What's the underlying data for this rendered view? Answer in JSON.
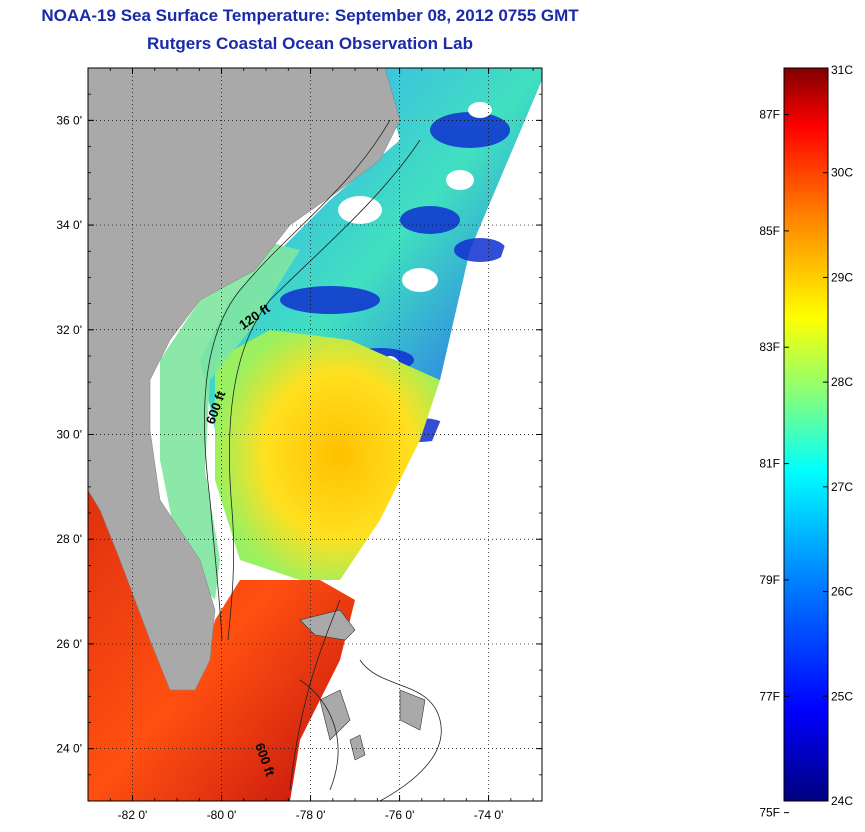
{
  "title": {
    "line1": "NOAA-19 Sea Surface Temperature:  September 08, 2012 0755 GMT",
    "line2": "Rutgers Coastal Ocean Observation Lab"
  },
  "map": {
    "lon_range": [
      -83.0,
      -72.8
    ],
    "lat_range": [
      23.0,
      37.0
    ],
    "lon_ticks": [
      {
        "value": -82,
        "label": "-82 0'"
      },
      {
        "value": -80,
        "label": "-80 0'"
      },
      {
        "value": -78,
        "label": "-78 0'"
      },
      {
        "value": -76,
        "label": "-76 0'"
      },
      {
        "value": -74,
        "label": "-74 0'"
      }
    ],
    "lat_ticks": [
      {
        "value": 24,
        "label": "24 0'"
      },
      {
        "value": 26,
        "label": "26 0'"
      },
      {
        "value": 28,
        "label": "28 0'"
      },
      {
        "value": 30,
        "label": "30 0'"
      },
      {
        "value": 32,
        "label": "32 0'"
      },
      {
        "value": 34,
        "label": "34 0'"
      },
      {
        "value": 36,
        "label": "36 0'"
      }
    ],
    "contour_labels": [
      "120 ft",
      "600 ft",
      "600 ft"
    ],
    "colors": {
      "land": "#a9a9a9",
      "ocean_gap": "#ffffff",
      "grid": "#000000"
    }
  },
  "colorbar": {
    "min_c": 24,
    "max_c": 31,
    "celsius_labels": [
      {
        "value": 31,
        "label": "31C"
      },
      {
        "value": 30,
        "label": "30C"
      },
      {
        "value": 29,
        "label": "29C"
      },
      {
        "value": 28,
        "label": "28C"
      },
      {
        "value": 27,
        "label": "27C"
      },
      {
        "value": 26,
        "label": "26C"
      },
      {
        "value": 25,
        "label": "25C"
      },
      {
        "value": 24,
        "label": "24C"
      }
    ],
    "fahrenheit_labels": [
      {
        "value": 87,
        "label": "87F"
      },
      {
        "value": 85,
        "label": "85F"
      },
      {
        "value": 83,
        "label": "83F"
      },
      {
        "value": 81,
        "label": "81F"
      },
      {
        "value": 79,
        "label": "79F"
      },
      {
        "value": 77,
        "label": "77F"
      },
      {
        "value": 75,
        "label": "75F"
      }
    ],
    "stops": [
      "#00007f",
      "#0000ff",
      "#0080ff",
      "#00ffff",
      "#80ff80",
      "#ffff00",
      "#ff8000",
      "#ff0000",
      "#800000"
    ]
  }
}
